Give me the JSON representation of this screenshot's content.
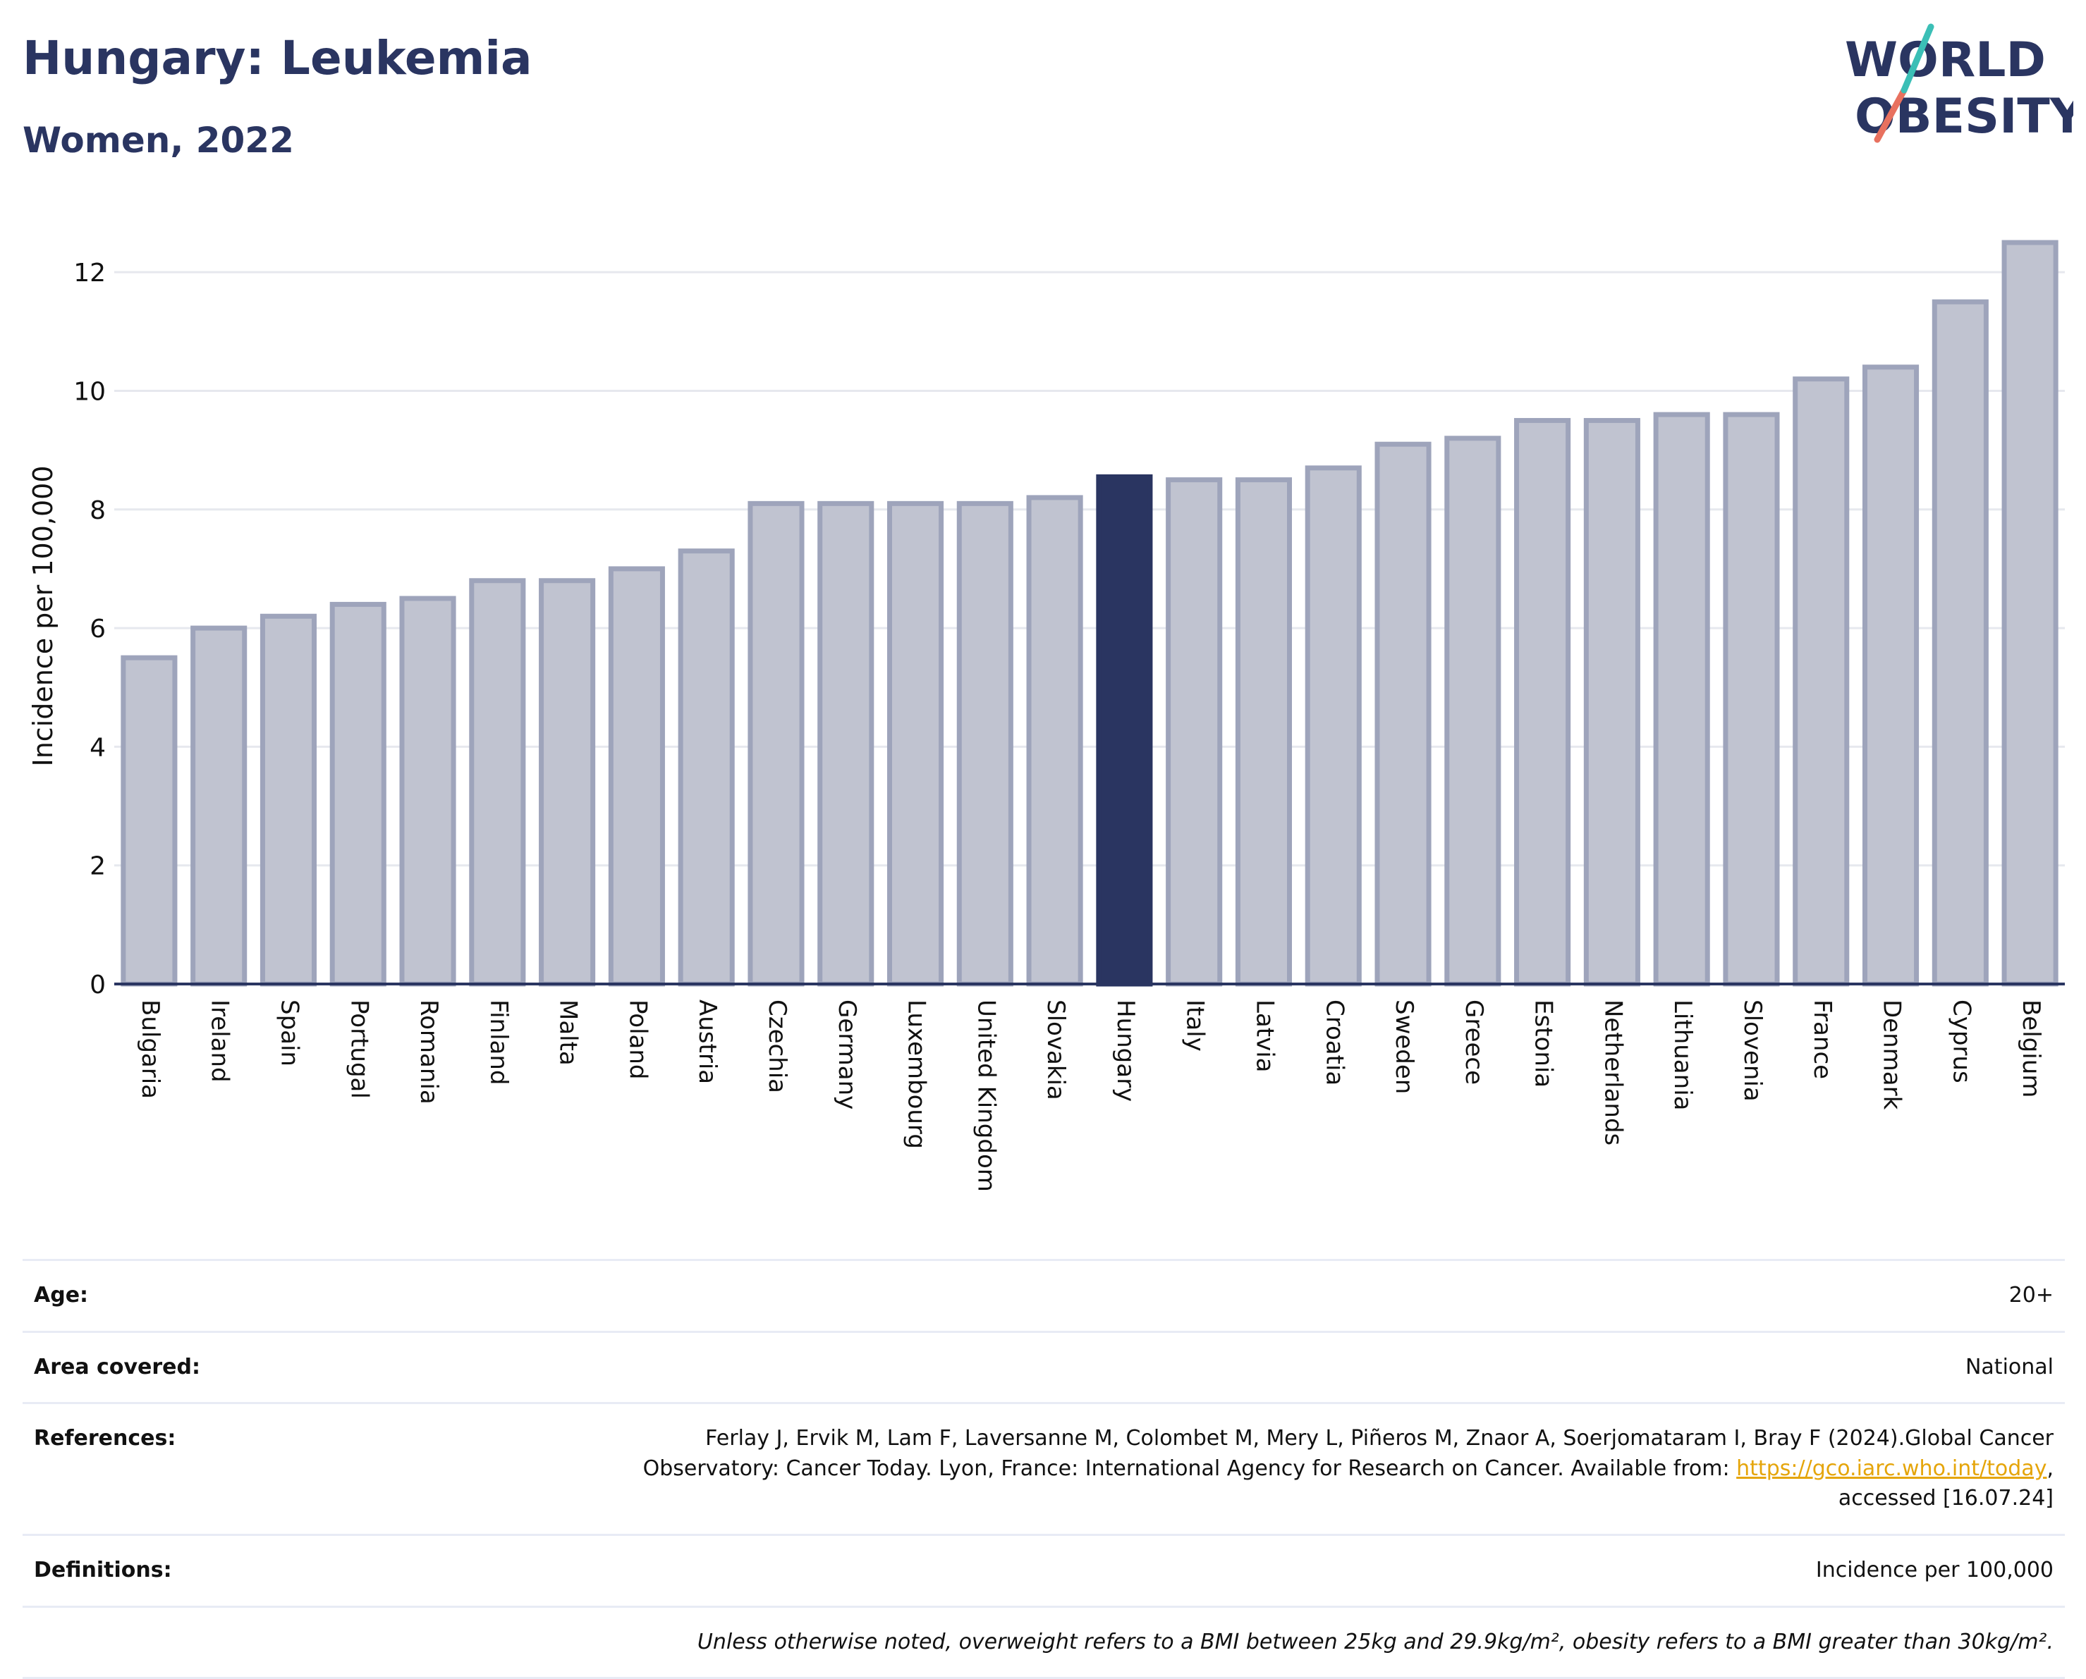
{
  "title": "Hungary: Leukemia",
  "subtitle": "Women, 2022",
  "logo": {
    "line1": "WORLD",
    "line2": "OBESITY"
  },
  "colors": {
    "highlight": "#2a3561",
    "bar": "#c0c3d0",
    "bar_edge": "#9ea4bb",
    "grid": "#e6e8ee",
    "axis": "#2a3561"
  },
  "chart_data": {
    "type": "bar",
    "ylabel": "Incidence per 100,000",
    "ylim": [
      0,
      13
    ],
    "yticks": [
      0,
      2,
      4,
      6,
      8,
      10,
      12
    ],
    "grid": true,
    "highlight": "Hungary",
    "categories": [
      "Bulgaria",
      "Ireland",
      "Spain",
      "Portugal",
      "Romania",
      "Finland",
      "Malta",
      "Poland",
      "Austria",
      "Czechia",
      "Germany",
      "Luxembourg",
      "United Kingdom",
      "Slovakia",
      "Hungary",
      "Italy",
      "Latvia",
      "Croatia",
      "Sweden",
      "Greece",
      "Estonia",
      "Netherlands",
      "Lithuania",
      "Slovenia",
      "France",
      "Denmark",
      "Cyprus",
      "Belgium"
    ],
    "values": [
      5.5,
      6.0,
      6.2,
      6.4,
      6.5,
      6.8,
      6.8,
      7.0,
      7.3,
      8.1,
      8.1,
      8.1,
      8.1,
      8.2,
      8.55,
      8.5,
      8.5,
      8.7,
      9.1,
      9.2,
      9.5,
      9.5,
      9.6,
      9.6,
      10.2,
      10.4,
      11.5,
      12.5
    ]
  },
  "meta": {
    "age_label": "Age:",
    "age_value": "20+",
    "area_label": "Area covered:",
    "area_value": "National",
    "ref_label": "References:",
    "ref_line1": "Ferlay J, Ervik M, Lam F, Laversanne M, Colombet M, Mery L, Piñeros M, Znaor A, Soerjomataram I, Bray F (2024).Global Cancer",
    "ref_line2_prefix": "Observatory: Cancer Today. Lyon, France: International Agency for Research on Cancer. Available from: ",
    "ref_link": "https://gco.iarc.who.int/today",
    "ref_line2_suffix": ",",
    "ref_line3": "accessed [16.07.24]",
    "def_label": "Definitions:",
    "def_value": "Incidence per 100,000",
    "note": "Unless otherwise noted, overweight refers to a BMI between 25kg and 29.9kg/m², obesity refers to a BMI greater than 30kg/m²."
  }
}
